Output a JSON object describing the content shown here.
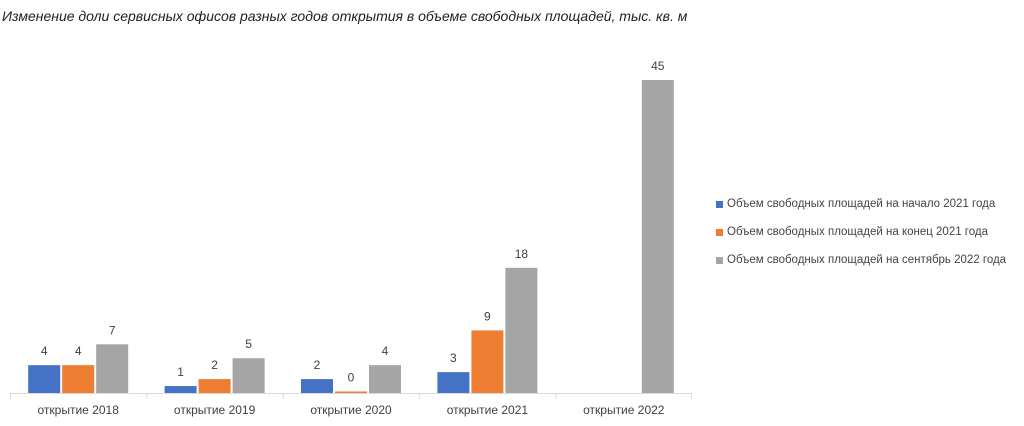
{
  "chart_data": {
    "type": "bar",
    "title": "Изменение доли сервисных офисов разных годов открытия в объеме свободных площадей, тыс. кв. м",
    "categories": [
      "открытие 2018",
      "открытие 2019",
      "открытие 2020",
      "открытие 2021",
      "открытие 2022"
    ],
    "series": [
      {
        "name": "Объем свободных площадей на начало 2021 года",
        "color": "#4472C4",
        "values": [
          4,
          1,
          2,
          3,
          null
        ]
      },
      {
        "name": "Объем свободных площадей на конец 2021 года",
        "color": "#ED7D31",
        "values": [
          4,
          2,
          0,
          9,
          null
        ]
      },
      {
        "name": "Объем свободных площадей на сентябрь 2022 года",
        "color": "#A5A5A5",
        "values": [
          7,
          5,
          4,
          18,
          45
        ]
      }
    ],
    "ylim": [
      0,
      45
    ],
    "legend_position": "right",
    "grid": false
  }
}
